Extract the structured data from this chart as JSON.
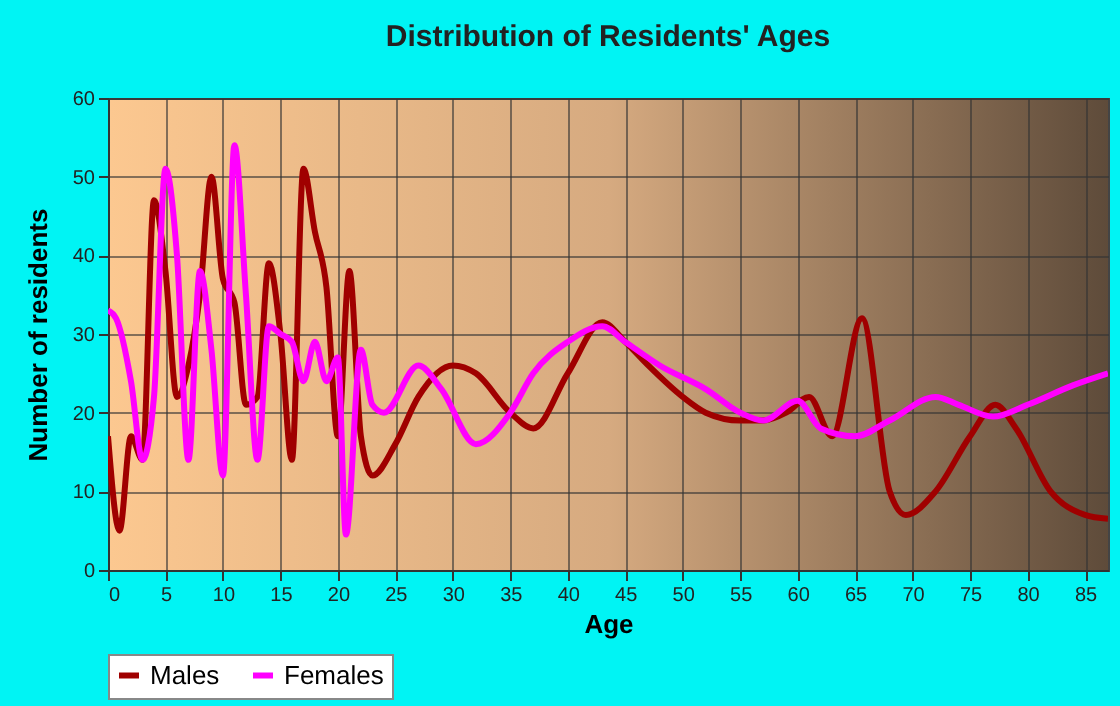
{
  "chart_data": {
    "type": "line",
    "title": "Distribution of Residents' Ages",
    "xlabel": "Age",
    "ylabel": "Number of residents",
    "xlim": [
      0,
      87
    ],
    "xticks": [
      0,
      5,
      10,
      15,
      20,
      25,
      30,
      35,
      40,
      45,
      50,
      55,
      60,
      65,
      70,
      75,
      80,
      85
    ],
    "ylim": [
      0,
      60
    ],
    "yticks": [
      0,
      10,
      20,
      30,
      40,
      50,
      60
    ],
    "grid": true,
    "legend": "bottom",
    "series": [
      {
        "name": "Males",
        "color": "#a00000",
        "x": [
          0,
          1,
          2,
          3,
          4,
          5,
          6,
          7,
          8,
          9,
          10,
          11,
          12,
          13,
          14,
          15,
          16,
          17,
          18,
          19,
          20,
          21,
          22,
          23,
          25,
          27,
          30,
          32,
          35,
          37,
          40,
          43,
          45,
          47,
          50,
          52,
          55,
          57,
          59,
          61,
          63,
          65.6,
          68,
          69.4,
          72,
          75,
          77.2,
          79,
          82,
          85,
          87
        ],
        "values": [
          17,
          5,
          17,
          14,
          47,
          38,
          22,
          26,
          35,
          50,
          37,
          34,
          21,
          22,
          39,
          30,
          14,
          51,
          43,
          36,
          17,
          38,
          17,
          12,
          16,
          22,
          26,
          25,
          20,
          18,
          25,
          31.5,
          29,
          26,
          22,
          20,
          19,
          19,
          20,
          22,
          17,
          32,
          10,
          7,
          10,
          17,
          21,
          18,
          10,
          7,
          6.5
        ]
      },
      {
        "name": "Females",
        "color": "#ff00ff",
        "x": [
          0,
          0.7,
          2,
          3,
          4,
          5,
          6,
          7,
          8,
          9,
          10,
          11,
          12,
          13,
          14,
          15,
          16,
          17,
          18,
          19,
          20,
          20.7,
          22,
          23,
          24,
          27,
          29,
          32,
          35,
          37,
          40,
          43,
          45,
          48,
          52,
          55,
          57,
          60,
          62,
          65,
          68,
          72,
          74,
          77,
          80,
          84,
          87
        ],
        "values": [
          33,
          32,
          24,
          14,
          22,
          51,
          40,
          14,
          38,
          28,
          12,
          54,
          35,
          14,
          31,
          30,
          29,
          24,
          29,
          24,
          27,
          4.5,
          28,
          21,
          20,
          26,
          23,
          16,
          20,
          25,
          29,
          31,
          29,
          26,
          23,
          20,
          19,
          21.5,
          18,
          17,
          19,
          22,
          21,
          19.5,
          21,
          23.5,
          25
        ]
      }
    ]
  }
}
